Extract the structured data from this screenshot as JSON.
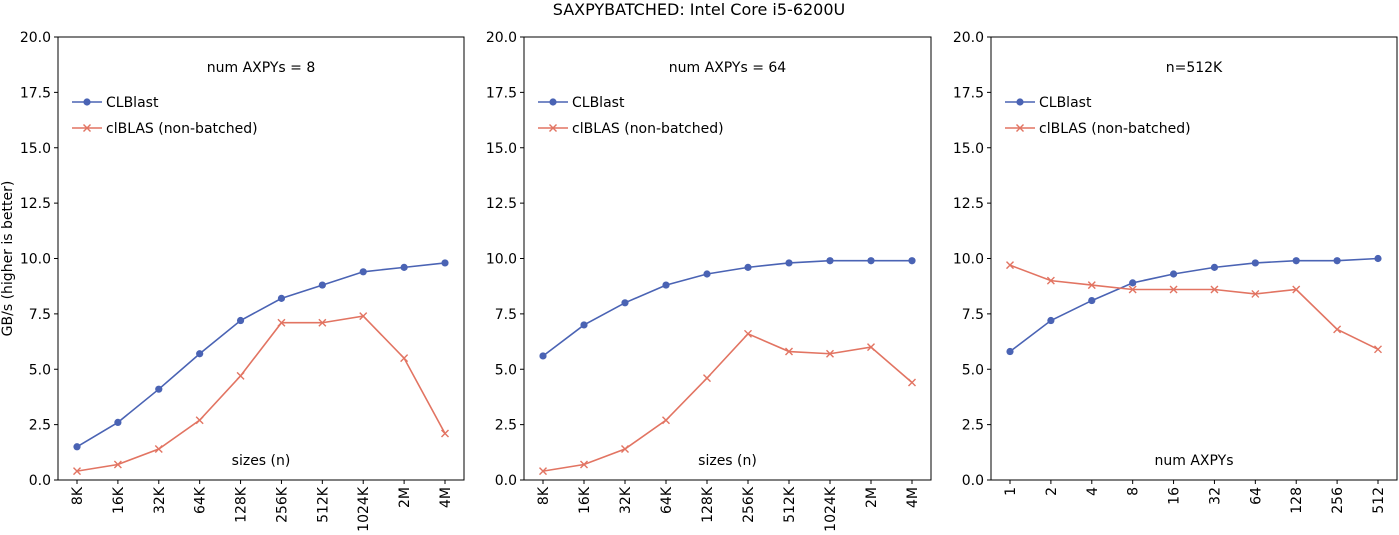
{
  "suptitle": "SAXPYBATCHED: Intel Core i5-6200U",
  "colors": {
    "clblast": "#4a63b4",
    "clblas": "#e27462",
    "axes": "#000000"
  },
  "chart_data": [
    {
      "type": "line",
      "annotation": "num AXPYs = 8",
      "xlabel": "sizes (n)",
      "ylabel": "GB/s (higher is better)",
      "ylim": [
        0,
        20
      ],
      "yticks": [
        "0.0",
        "2.5",
        "5.0",
        "7.5",
        "10.0",
        "12.5",
        "15.0",
        "17.5",
        "20.0"
      ],
      "categories": [
        "8K",
        "16K",
        "32K",
        "64K",
        "128K",
        "256K",
        "512K",
        "1024K",
        "2M",
        "4M"
      ],
      "legend_position": "upper-left",
      "series": [
        {
          "name": "CLBlast",
          "marker": "circle",
          "values": [
            1.5,
            2.6,
            4.1,
            5.7,
            7.2,
            8.2,
            8.8,
            9.4,
            9.6,
            9.8
          ]
        },
        {
          "name": "clBLAS (non-batched)",
          "marker": "x",
          "values": [
            0.4,
            0.7,
            1.4,
            2.7,
            4.7,
            7.1,
            7.1,
            7.4,
            5.5,
            2.1
          ]
        }
      ]
    },
    {
      "type": "line",
      "annotation": "num AXPYs = 64",
      "xlabel": "sizes (n)",
      "ylabel": "",
      "ylim": [
        0,
        20
      ],
      "yticks": [
        "0.0",
        "2.5",
        "5.0",
        "7.5",
        "10.0",
        "12.5",
        "15.0",
        "17.5",
        "20.0"
      ],
      "categories": [
        "8K",
        "16K",
        "32K",
        "64K",
        "128K",
        "256K",
        "512K",
        "1024K",
        "2M",
        "4M"
      ],
      "legend_position": "upper-left",
      "series": [
        {
          "name": "CLBlast",
          "marker": "circle",
          "values": [
            5.6,
            7.0,
            8.0,
            8.8,
            9.3,
            9.6,
            9.8,
            9.9,
            9.9,
            9.9
          ]
        },
        {
          "name": "clBLAS (non-batched)",
          "marker": "x",
          "values": [
            0.4,
            0.7,
            1.4,
            2.7,
            4.6,
            6.6,
            5.8,
            5.7,
            6.0,
            4.4
          ]
        }
      ]
    },
    {
      "type": "line",
      "annotation": "n=512K",
      "xlabel": "num AXPYs",
      "ylabel": "",
      "ylim": [
        0,
        20
      ],
      "yticks": [
        "0.0",
        "2.5",
        "5.0",
        "7.5",
        "10.0",
        "12.5",
        "15.0",
        "17.5",
        "20.0"
      ],
      "categories": [
        "1",
        "2",
        "4",
        "8",
        "16",
        "32",
        "64",
        "128",
        "256",
        "512"
      ],
      "legend_position": "upper-left",
      "series": [
        {
          "name": "CLBlast",
          "marker": "circle",
          "values": [
            5.8,
            7.2,
            8.1,
            8.9,
            9.3,
            9.6,
            9.8,
            9.9,
            9.9,
            10.0
          ]
        },
        {
          "name": "clBLAS (non-batched)",
          "marker": "x",
          "values": [
            9.7,
            9.0,
            8.8,
            8.6,
            8.6,
            8.6,
            8.4,
            8.6,
            6.8,
            5.9
          ]
        }
      ]
    }
  ]
}
